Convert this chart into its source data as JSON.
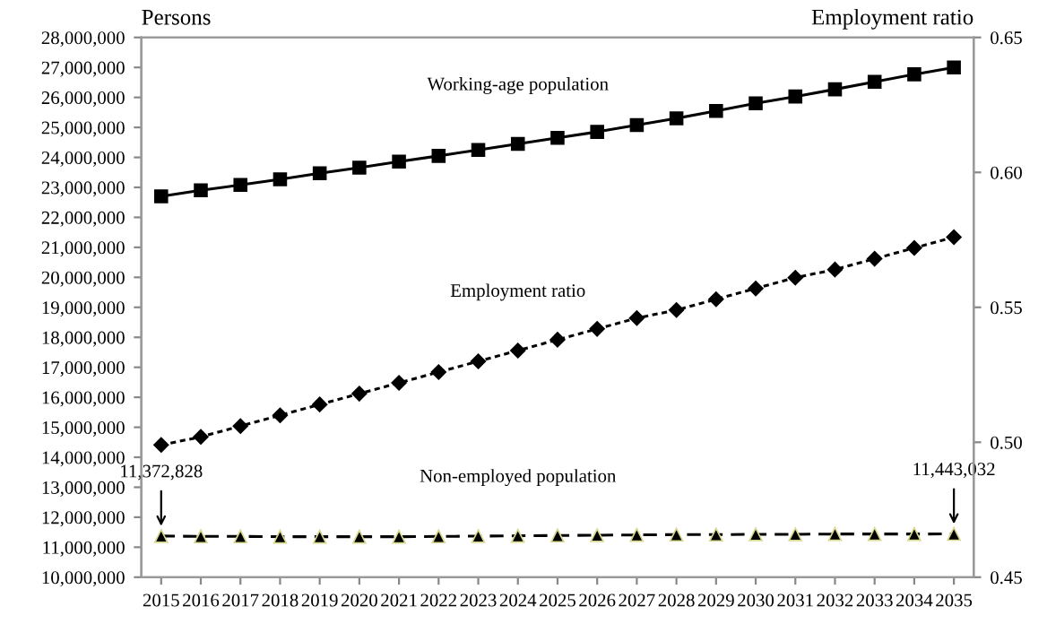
{
  "chart_data": {
    "type": "line",
    "categories": [
      "2015",
      "2016",
      "2017",
      "2018",
      "2019",
      "2020",
      "2021",
      "2022",
      "2023",
      "2024",
      "2025",
      "2026",
      "2027",
      "2028",
      "2029",
      "2030",
      "2031",
      "2032",
      "2033",
      "2034",
      "2035"
    ],
    "ylabel": "Persons",
    "y2label": "Employment ratio",
    "series": [
      {
        "name": "Working-age population",
        "color": "#000000",
        "marker": "square",
        "line_style": "solid",
        "values": [
          22700000,
          22900000,
          23080000,
          23270000,
          23470000,
          23660000,
          23860000,
          24050000,
          24250000,
          24450000,
          24650000,
          24850000,
          25080000,
          25300000,
          25550000,
          25800000,
          26030000,
          26270000,
          26520000,
          26770000,
          27000000
        ]
      },
      {
        "name": "Employment ratio",
        "color": "#000000",
        "marker": "diamond",
        "line_style": "dotted",
        "axis": "y2",
        "values": [
          0.499,
          0.502,
          0.506,
          0.51,
          0.514,
          0.518,
          0.522,
          0.526,
          0.53,
          0.534,
          0.538,
          0.542,
          0.546,
          0.549,
          0.553,
          0.557,
          0.561,
          0.564,
          0.568,
          0.572,
          0.576
        ]
      },
      {
        "name": "Non-employed population",
        "color": "#000000",
        "marker": "triangle",
        "line_style": "dashed",
        "values": [
          11372828,
          11360000,
          11360000,
          11350000,
          11350000,
          11350000,
          11350000,
          11360000,
          11370000,
          11380000,
          11390000,
          11400000,
          11410000,
          11420000,
          11420000,
          11430000,
          11430000,
          11440000,
          11440000,
          11440000,
          11443032
        ]
      }
    ],
    "ylim": [
      10000000,
      28000000
    ],
    "yticks": [
      {
        "value": 10000000,
        "label": "10,000,000"
      },
      {
        "value": 11000000,
        "label": "11,000,000"
      },
      {
        "value": 12000000,
        "label": "12,000,000"
      },
      {
        "value": 13000000,
        "label": "13,000,000"
      },
      {
        "value": 14000000,
        "label": "14,000,000"
      },
      {
        "value": 15000000,
        "label": "15,000,000"
      },
      {
        "value": 16000000,
        "label": "16,000,000"
      },
      {
        "value": 17000000,
        "label": "17,000,000"
      },
      {
        "value": 18000000,
        "label": "18,000,000"
      },
      {
        "value": 19000000,
        "label": "19,000,000"
      },
      {
        "value": 20000000,
        "label": "20,000,000"
      },
      {
        "value": 21000000,
        "label": "21,000,000"
      },
      {
        "value": 22000000,
        "label": "22,000,000"
      },
      {
        "value": 23000000,
        "label": "23,000,000"
      },
      {
        "value": 24000000,
        "label": "24,000,000"
      },
      {
        "value": 25000000,
        "label": "25,000,000"
      },
      {
        "value": 26000000,
        "label": "26,000,000"
      },
      {
        "value": 27000000,
        "label": "27,000,000"
      },
      {
        "value": 28000000,
        "label": "28,000,000"
      }
    ],
    "y2lim": [
      0.45,
      0.65
    ],
    "y2ticks": [
      0.45,
      {
        "value": 0.5,
        "label": "0.50"
      },
      0.55,
      {
        "value": 0.6,
        "label": "0.60"
      },
      0.65
    ],
    "annotations": [
      {
        "text": "11,372,828",
        "x": "2015",
        "y": 11372828
      },
      {
        "text": "11,443,032",
        "x": "2035",
        "y": 11443032
      }
    ],
    "legend": false,
    "grid": false
  }
}
